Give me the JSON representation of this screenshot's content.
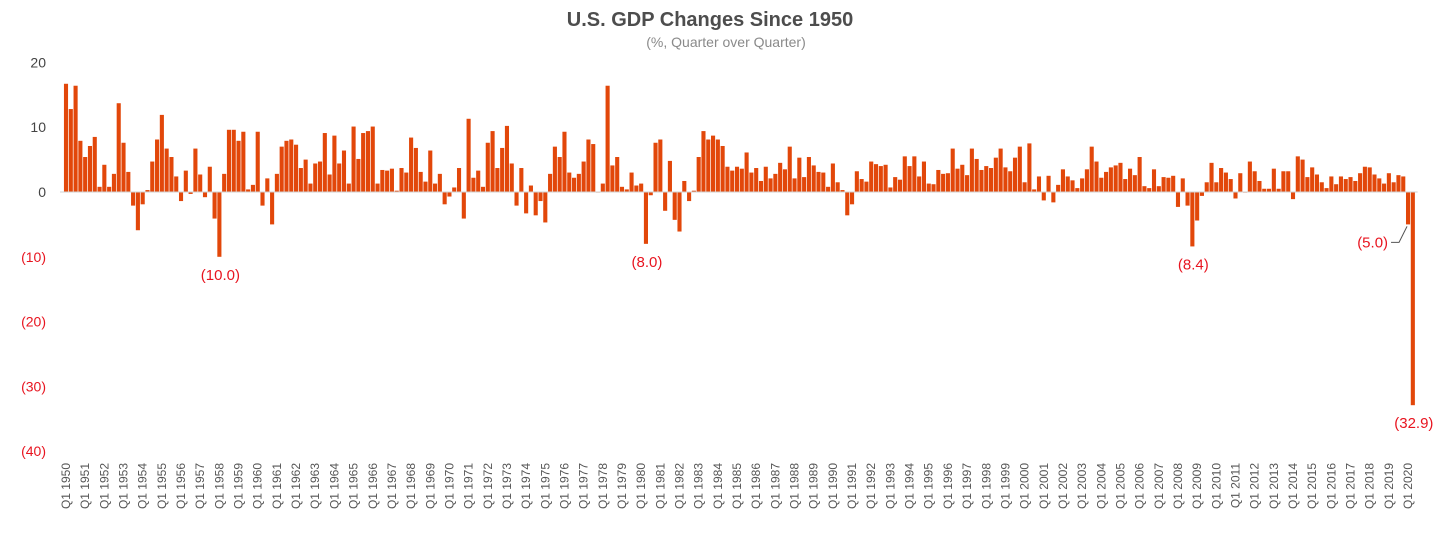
{
  "colors": {
    "bar": "#E2470A",
    "negative_label": "#E8141F",
    "baseline": "#D0D0D0"
  },
  "chart_data": {
    "type": "bar",
    "title": "U.S. GDP Changes Since 1950",
    "subtitle": "(%, Quarter over Quarter)",
    "xlabel": "",
    "ylabel": "",
    "ylim": [
      -40,
      20
    ],
    "grid": false,
    "legend": "none",
    "start": "Q1 1950",
    "end": "Q2 2020",
    "y_ticks": [
      {
        "value": 20,
        "label": "20"
      },
      {
        "value": 10,
        "label": "10"
      },
      {
        "value": 0,
        "label": "0"
      },
      {
        "value": -10,
        "label": "(10)"
      },
      {
        "value": -20,
        "label": "(20)"
      },
      {
        "value": -30,
        "label": "(30)"
      },
      {
        "value": -40,
        "label": "(40)"
      }
    ],
    "x_tick_labels": [
      "Q1 1950",
      "Q1 1951",
      "Q1 1952",
      "Q1 1953",
      "Q1 1954",
      "Q1 1955",
      "Q1 1956",
      "Q1 1957",
      "Q1 1958",
      "Q1 1959",
      "Q1 1960",
      "Q1 1961",
      "Q1 1962",
      "Q1 1963",
      "Q1 1964",
      "Q1 1965",
      "Q1 1966",
      "Q1 1967",
      "Q1 1968",
      "Q1 1969",
      "Q1 1970",
      "Q1 1971",
      "Q1 1972",
      "Q1 1973",
      "Q1 1974",
      "Q1 1975",
      "Q1 1976",
      "Q1 1977",
      "Q1 1978",
      "Q1 1979",
      "Q1 1980",
      "Q1 1981",
      "Q1 1982",
      "Q1 1983",
      "Q1 1984",
      "Q1 1985",
      "Q1 1986",
      "Q1 1987",
      "Q1 1988",
      "Q1 1989",
      "Q1 1990",
      "Q1 1991",
      "Q1 1992",
      "Q1 1993",
      "Q1 1994",
      "Q1 1995",
      "Q1 1996",
      "Q1 1997",
      "Q1 1998",
      "Q1 1999",
      "Q1 2000",
      "Q1 2001",
      "Q1 2002",
      "Q1 2003",
      "Q1 2004",
      "Q1 2005",
      "Q1 2006",
      "Q1 2007",
      "Q1 2008",
      "Q1 2009",
      "Q1 2010",
      "Q1 2011",
      "Q1 2012",
      "Q1 2013",
      "Q1 2014",
      "Q1 2015",
      "Q1 2016",
      "Q1 2017",
      "Q1 2018",
      "Q1 2019",
      "Q1 2020"
    ],
    "values": [
      16.7,
      12.8,
      16.4,
      7.9,
      5.4,
      7.1,
      8.5,
      0.8,
      4.2,
      0.8,
      2.8,
      13.7,
      7.6,
      3.1,
      -2.1,
      -5.9,
      -1.9,
      0.3,
      4.7,
      8.1,
      11.9,
      6.7,
      5.4,
      2.4,
      -1.4,
      3.3,
      -0.3,
      6.7,
      2.7,
      -0.8,
      3.9,
      -4.1,
      -10.0,
      2.8,
      9.6,
      9.6,
      7.9,
      9.3,
      0.4,
      1.1,
      9.3,
      -2.1,
      2.1,
      -5.0,
      2.8,
      7.0,
      7.9,
      8.1,
      7.3,
      3.7,
      5.0,
      1.3,
      4.4,
      4.7,
      9.1,
      2.7,
      8.7,
      4.4,
      6.4,
      1.3,
      10.1,
      5.1,
      9.1,
      9.4,
      10.1,
      1.3,
      3.4,
      3.3,
      3.6,
      0.2,
      3.7,
      3.0,
      8.4,
      6.8,
      3.1,
      1.6,
      6.4,
      1.3,
      2.8,
      -1.9,
      -0.7,
      0.7,
      3.7,
      -4.1,
      11.3,
      2.2,
      3.3,
      0.8,
      7.6,
      9.4,
      3.7,
      6.8,
      10.2,
      4.4,
      -2.1,
      3.7,
      -3.3,
      1.0,
      -3.6,
      -1.4,
      -4.7,
      2.8,
      7.0,
      5.4,
      9.3,
      3.0,
      2.2,
      2.8,
      4.7,
      8.1,
      7.4,
      0.0,
      1.3,
      16.4,
      4.1,
      5.4,
      0.8,
      0.4,
      3.0,
      1.0,
      1.3,
      -8.0,
      -0.5,
      7.6,
      8.1,
      -2.9,
      4.8,
      -4.3,
      -6.1,
      1.7,
      -1.4,
      0.2,
      5.4,
      9.4,
      8.1,
      8.7,
      8.1,
      7.1,
      3.9,
      3.3,
      3.9,
      3.6,
      6.1,
      3.0,
      3.7,
      1.7,
      3.9,
      2.1,
      2.8,
      4.5,
      3.5,
      7.0,
      2.1,
      5.3,
      2.3,
      5.4,
      4.1,
      3.1,
      3.0,
      0.8,
      4.4,
      1.5,
      0.3,
      -3.6,
      -1.9,
      3.2,
      2.0,
      1.6,
      4.7,
      4.3,
      4.0,
      4.2,
      0.7,
      2.3,
      1.9,
      5.5,
      4.0,
      5.5,
      2.4,
      4.7,
      1.3,
      1.2,
      3.4,
      2.8,
      2.9,
      6.7,
      3.6,
      4.2,
      2.6,
      6.7,
      5.1,
      3.4,
      4.0,
      3.7,
      5.3,
      6.7,
      3.8,
      3.2,
      5.3,
      7.0,
      1.5,
      7.5,
      0.4,
      2.4,
      -1.3,
      2.5,
      -1.6,
      1.1,
      3.5,
      2.4,
      1.8,
      0.6,
      2.1,
      3.5,
      7.0,
      4.7,
      2.2,
      3.1,
      3.8,
      4.1,
      4.5,
      2.0,
      3.6,
      2.6,
      5.4,
      0.9,
      0.6,
      3.5,
      0.9,
      2.3,
      2.2,
      2.5,
      -2.3,
      2.1,
      -2.1,
      -8.4,
      -4.4,
      -0.6,
      1.5,
      4.5,
      1.5,
      3.7,
      3.0,
      2.0,
      -1.0,
      2.9,
      -0.1,
      4.7,
      3.2,
      1.7,
      0.5,
      0.5,
      3.6,
      0.5,
      3.2,
      3.2,
      -1.1,
      5.5,
      5.0,
      2.3,
      3.8,
      2.7,
      1.5,
      0.6,
      2.4,
      1.2,
      2.4,
      2.0,
      2.3,
      1.7,
      2.9,
      3.9,
      3.8,
      2.7,
      2.1,
      1.3,
      2.9,
      1.5,
      2.6,
      2.4,
      -5.0,
      -32.9
    ],
    "annotations": [
      {
        "quarter": "Q1 1958",
        "index": 32,
        "label": "(10.0)",
        "placement": "below"
      },
      {
        "quarter": "Q2 1980",
        "index": 121,
        "label": "(8.0)",
        "placement": "below"
      },
      {
        "quarter": "Q4 2008",
        "index": 235,
        "label": "(8.4)",
        "placement": "below"
      },
      {
        "quarter": "Q1 2020",
        "index": 280,
        "label": "(5.0)",
        "placement": "left"
      },
      {
        "quarter": "Q2 2020",
        "index": 281,
        "label": "(32.9)",
        "placement": "below"
      }
    ]
  }
}
